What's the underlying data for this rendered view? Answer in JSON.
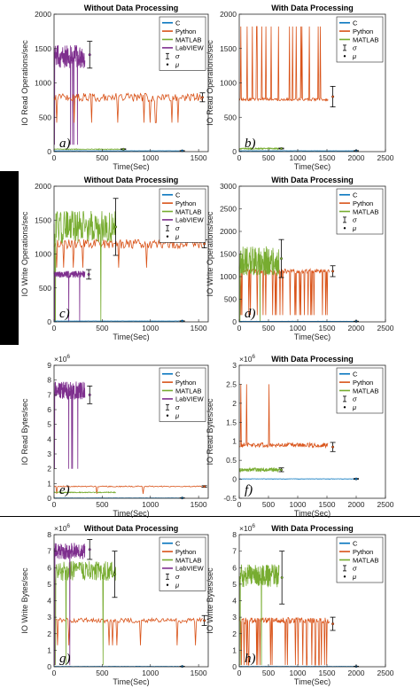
{
  "figure": {
    "x_axis_label": "Time(Sec)",
    "legend_sigma": "σ",
    "legend_mu": "μ",
    "exp_prefix": "×10",
    "exponent": "6"
  },
  "colors": {
    "C": "#0072BD",
    "Python": "#D95319",
    "MATLAB": "#77AC30",
    "LabVIEW": "#7E2F8E",
    "sigma": "#000000",
    "mu": "#000000"
  },
  "chart_data": [
    {
      "id": "a",
      "type": "line",
      "panel_label": "a)",
      "title": "Without Data Processing",
      "xlabel": "Time(Sec)",
      "ylabel": "IO Read Operations/sec",
      "exponent": "",
      "xlim": [
        0,
        1600
      ],
      "ylim": [
        0,
        2000
      ],
      "xticks": [
        0,
        500,
        1000,
        1500
      ],
      "yticks": [
        0,
        500,
        1000,
        1500,
        2000
      ],
      "legend": [
        "C",
        "Python",
        "MATLAB",
        "LabVIEW",
        "σ",
        "μ"
      ],
      "legend_position": "top-right",
      "series": [
        {
          "name": "LabVIEW",
          "start": 0,
          "end": 320,
          "mean": 1380,
          "noise": 170,
          "spikes": 5,
          "spike_to": 100
        },
        {
          "name": "Python",
          "start": 0,
          "end": 1540,
          "mean": 790,
          "noise": 60,
          "spikes": 10,
          "spike_to": 420
        },
        {
          "name": "MATLAB",
          "start": 0,
          "end": 700,
          "mean": 35,
          "noise": 6,
          "spikes": 0
        },
        {
          "name": "C",
          "start": 0,
          "end": 1300,
          "mean": 12,
          "noise": 1,
          "spikes": 0
        }
      ],
      "errorbars": [
        {
          "name": "LabVIEW",
          "x": 370,
          "mean": 1410,
          "sd": 195
        },
        {
          "name": "Python",
          "x": 1540,
          "mean": 790,
          "sd": 65
        },
        {
          "name": "MATLAB",
          "x": 720,
          "mean": 35,
          "sd": 5
        },
        {
          "name": "C",
          "x": 1330,
          "mean": 12,
          "sd": 2
        }
      ]
    },
    {
      "id": "b",
      "type": "line",
      "panel_label": "b)",
      "title": "With Data Processing",
      "xlabel": "Time(Sec)",
      "ylabel": "IO Read Operations/sec",
      "exponent": "",
      "xlim": [
        0,
        2500
      ],
      "ylim": [
        0,
        2000
      ],
      "xticks": [
        0,
        500,
        1000,
        1500,
        2000,
        2500
      ],
      "yticks": [
        0,
        500,
        1000,
        1500,
        2000
      ],
      "legend": [
        "C",
        "Python",
        "MATLAB",
        "σ",
        "μ"
      ],
      "legend_position": "top-right",
      "series": [
        {
          "name": "Python",
          "start": 0,
          "end": 1520,
          "mean": 760,
          "noise": 20,
          "spikes": 18,
          "spike_to": 1820
        },
        {
          "name": "MATLAB",
          "start": 0,
          "end": 700,
          "mean": 45,
          "noise": 10,
          "spikes": 0
        },
        {
          "name": "C",
          "start": 0,
          "end": 2000,
          "mean": 12,
          "noise": 1,
          "spikes": 0
        }
      ],
      "errorbars": [
        {
          "name": "Python",
          "x": 1600,
          "mean": 800,
          "sd": 150
        },
        {
          "name": "MATLAB",
          "x": 720,
          "mean": 45,
          "sd": 6
        },
        {
          "name": "C",
          "x": 2000,
          "mean": 12,
          "sd": 2
        }
      ]
    },
    {
      "id": "c",
      "type": "line",
      "panel_label": "c)",
      "title": "Without Data Processing",
      "xlabel": "Time(Sec)",
      "ylabel": "IO Write Operations/sec",
      "exponent": "",
      "xlim": [
        0,
        1600
      ],
      "ylim": [
        0,
        2000
      ],
      "xticks": [
        0,
        500,
        1000,
        1500
      ],
      "yticks": [
        0,
        500,
        1000,
        1500,
        2000
      ],
      "legend": [
        "C",
        "Python",
        "MATLAB",
        "LabVIEW",
        "σ",
        "μ"
      ],
      "legend_position": "top-right",
      "series": [
        {
          "name": "Python",
          "start": 0,
          "end": 1540,
          "mean": 1150,
          "noise": 70,
          "spikes": 6,
          "spike_to": 800
        },
        {
          "name": "MATLAB",
          "start": 0,
          "end": 640,
          "mean": 1400,
          "noise": 240,
          "spikes": 3,
          "spike_to": 0
        },
        {
          "name": "LabVIEW",
          "start": 0,
          "end": 320,
          "mean": 700,
          "noise": 50,
          "spikes": 3,
          "spike_to": 0
        },
        {
          "name": "C",
          "start": 0,
          "end": 1300,
          "mean": 12,
          "noise": 1,
          "spikes": 0
        }
      ],
      "errorbars": [
        {
          "name": "MATLAB",
          "x": 640,
          "mean": 1400,
          "sd": 420
        },
        {
          "name": "Python",
          "x": 1560,
          "mean": 1150,
          "sd": 60
        },
        {
          "name": "LabVIEW",
          "x": 360,
          "mean": 700,
          "sd": 70
        },
        {
          "name": "C",
          "x": 1330,
          "mean": 12,
          "sd": 2
        }
      ]
    },
    {
      "id": "d",
      "type": "line",
      "panel_label": "d)",
      "title": "With Data Processing",
      "xlabel": "Time(Sec)",
      "ylabel": "IO Write Operations/sec",
      "exponent": "",
      "xlim": [
        0,
        2500
      ],
      "ylim": [
        0,
        3000
      ],
      "xticks": [
        0,
        500,
        1000,
        1500,
        2000,
        2500
      ],
      "yticks": [
        0,
        500,
        1000,
        1500,
        2000,
        2500,
        3000
      ],
      "legend": [
        "C",
        "Python",
        "MATLAB",
        "σ",
        "μ"
      ],
      "legend_position": "top-right",
      "series": [
        {
          "name": "Python",
          "start": 0,
          "end": 1540,
          "mean": 1120,
          "noise": 50,
          "spikes": 26,
          "spike_to": 150
        },
        {
          "name": "MATLAB",
          "start": 0,
          "end": 680,
          "mean": 1350,
          "noise": 330,
          "spikes": 2,
          "spike_to": 0
        },
        {
          "name": "C",
          "start": 0,
          "end": 2000,
          "mean": 12,
          "noise": 1,
          "spikes": 0
        }
      ],
      "errorbars": [
        {
          "name": "MATLAB",
          "x": 720,
          "mean": 1400,
          "sd": 420
        },
        {
          "name": "Python",
          "x": 1600,
          "mean": 1120,
          "sd": 120
        },
        {
          "name": "C",
          "x": 2000,
          "mean": 12,
          "sd": 2
        }
      ]
    },
    {
      "id": "e",
      "type": "line",
      "panel_label": "e)",
      "title": "",
      "xlabel": "Time(Sec)",
      "ylabel": "IO Read Bytes/sec",
      "exponent": "6",
      "xlim": [
        0,
        1600
      ],
      "ylim": [
        0,
        9
      ],
      "xticks": [
        0,
        500,
        1000,
        1500
      ],
      "yticks": [
        0,
        1,
        2,
        3,
        4,
        5,
        6,
        7,
        8,
        9
      ],
      "legend": [
        "C",
        "Python",
        "MATLAB",
        "LabVIEW",
        "σ",
        "μ"
      ],
      "legend_position": "top-right",
      "series": [
        {
          "name": "LabVIEW",
          "start": 0,
          "end": 320,
          "mean": 7.3,
          "noise": 0.6,
          "spikes": 5,
          "spike_to": 2.0
        },
        {
          "name": "Python",
          "start": 0,
          "end": 1540,
          "mean": 0.8,
          "noise": 0.04,
          "spikes": 3,
          "spike_to": 0.3
        },
        {
          "name": "MATLAB",
          "start": 0,
          "end": 640,
          "mean": 0.4,
          "noise": 0.03,
          "spikes": 0
        },
        {
          "name": "C",
          "start": 0,
          "end": 1300,
          "mean": 0.02,
          "noise": 0.01,
          "spikes": 0
        }
      ],
      "errorbars": [
        {
          "name": "LabVIEW",
          "x": 370,
          "mean": 7.0,
          "sd": 0.6
        },
        {
          "name": "Python",
          "x": 1560,
          "mean": 0.8,
          "sd": 0.05
        },
        {
          "name": "C",
          "x": 1330,
          "mean": 0.02,
          "sd": 0.01
        }
      ]
    },
    {
      "id": "f",
      "type": "line",
      "panel_label": "f)",
      "title": "With Data Processing",
      "xlabel": "Time(Sec)",
      "ylabel": "IO Read Bytes/sec",
      "exponent": "6",
      "xlim": [
        0,
        2500
      ],
      "ylim": [
        -0.5,
        3
      ],
      "xticks": [
        0,
        500,
        1000,
        1500,
        2000,
        2500
      ],
      "yticks": [
        -0.5,
        0,
        0.5,
        1,
        1.5,
        2,
        2.5,
        3
      ],
      "legend": [
        "C",
        "Python",
        "MATLAB",
        "σ",
        "μ"
      ],
      "legend_position": "top-right",
      "series": [
        {
          "name": "Python",
          "start": 0,
          "end": 1520,
          "mean": 0.9,
          "noise": 0.06,
          "spikes": 3,
          "spike_to": 2.5
        },
        {
          "name": "MATLAB",
          "start": 0,
          "end": 700,
          "mean": 0.25,
          "noise": 0.05,
          "spikes": 0
        },
        {
          "name": "C",
          "start": 0,
          "end": 2000,
          "mean": 0.01,
          "noise": 0.005,
          "spikes": 0
        }
      ],
      "errorbars": [
        {
          "name": "Python",
          "x": 1600,
          "mean": 0.85,
          "sd": 0.12
        },
        {
          "name": "MATLAB",
          "x": 720,
          "mean": 0.25,
          "sd": 0.05
        },
        {
          "name": "C",
          "x": 2000,
          "mean": 0.01,
          "sd": 0.01
        }
      ]
    },
    {
      "id": "g",
      "type": "line",
      "panel_label": "g)",
      "title": "Without Data Processing",
      "xlabel": "Time(Sec)",
      "ylabel": "IO Write Bytes/sec",
      "exponent": "6",
      "xlim": [
        0,
        1600
      ],
      "ylim": [
        0,
        8
      ],
      "xticks": [
        0,
        500,
        1000,
        1500
      ],
      "yticks": [
        0,
        1,
        2,
        3,
        4,
        5,
        6,
        7,
        8
      ],
      "legend": [
        "C",
        "Python",
        "MATLAB",
        "LabVIEW",
        "σ",
        "μ"
      ],
      "legend_position": "top-right",
      "series": [
        {
          "name": "Python",
          "start": 0,
          "end": 1540,
          "mean": 2.8,
          "noise": 0.15,
          "spikes": 8,
          "spike_to": 1.3
        },
        {
          "name": "MATLAB",
          "start": 0,
          "end": 640,
          "mean": 5.8,
          "noise": 0.6,
          "spikes": 3,
          "spike_to": 0.1
        },
        {
          "name": "LabVIEW",
          "start": 0,
          "end": 320,
          "mean": 7.0,
          "noise": 0.5,
          "spikes": 3,
          "spike_to": 0.1
        },
        {
          "name": "C",
          "start": 0,
          "end": 1300,
          "mean": 0.02,
          "noise": 0.01,
          "spikes": 0
        }
      ],
      "errorbars": [
        {
          "name": "MATLAB",
          "x": 630,
          "mean": 5.6,
          "sd": 1.4
        },
        {
          "name": "LabVIEW",
          "x": 370,
          "mean": 7.1,
          "sd": 0.6
        },
        {
          "name": "Python",
          "x": 1560,
          "mean": 2.8,
          "sd": 0.3
        },
        {
          "name": "C",
          "x": 1330,
          "mean": 0.02,
          "sd": 0.01
        }
      ]
    },
    {
      "id": "h",
      "type": "line",
      "panel_label": "h)",
      "title": "With Data Processing",
      "xlabel": "Time(Sec)",
      "ylabel": "IO Write Bytes/sec",
      "exponent": "6",
      "xlim": [
        0,
        2500
      ],
      "ylim": [
        0,
        8
      ],
      "xticks": [
        0,
        500,
        1000,
        1500,
        2000,
        2500
      ],
      "yticks": [
        0,
        1,
        2,
        3,
        4,
        5,
        6,
        7,
        8
      ],
      "legend": [
        "C",
        "Python",
        "MATLAB",
        "σ",
        "μ"
      ],
      "legend_position": "top-right",
      "series": [
        {
          "name": "Python",
          "start": 0,
          "end": 1540,
          "mean": 2.8,
          "noise": 0.18,
          "spikes": 26,
          "spike_to": 0.1
        },
        {
          "name": "MATLAB",
          "start": 0,
          "end": 680,
          "mean": 5.5,
          "noise": 0.7,
          "spikes": 2,
          "spike_to": 0.1
        },
        {
          "name": "C",
          "start": 0,
          "end": 2000,
          "mean": 0.02,
          "noise": 0.01,
          "spikes": 0
        }
      ],
      "errorbars": [
        {
          "name": "MATLAB",
          "x": 730,
          "mean": 5.4,
          "sd": 1.6
        },
        {
          "name": "Python",
          "x": 1600,
          "mean": 2.6,
          "sd": 0.4
        },
        {
          "name": "C",
          "x": 2000,
          "mean": 0.02,
          "sd": 0.01
        }
      ]
    }
  ]
}
